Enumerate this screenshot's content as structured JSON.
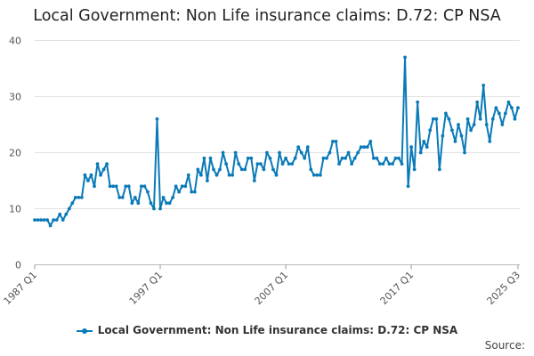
{
  "chart_data": {
    "type": "line",
    "title": "Local Government: Non Life insurance claims: D.72: CP NSA",
    "xlabel": "",
    "ylabel": "",
    "ylim": [
      0,
      40
    ],
    "yticks": [
      0,
      10,
      20,
      30,
      40
    ],
    "x_start": "1987 Q1",
    "x_end": "2025 Q3",
    "xtick_labels": [
      "1987 Q1",
      "1997 Q1",
      "2007 Q1",
      "2017 Q1",
      "2025 Q3"
    ],
    "grid": "horizontal",
    "legend_position": "bottom",
    "series": [
      {
        "name": "Local Government: Non Life insurance claims: D.72: CP NSA",
        "color": "#0a7ab8",
        "values": [
          8,
          8,
          8,
          8,
          8,
          7,
          8,
          8,
          9,
          8,
          9,
          10,
          11,
          12,
          12,
          12,
          16,
          15,
          16,
          14,
          18,
          16,
          17,
          18,
          14,
          14,
          14,
          12,
          12,
          14,
          14,
          11,
          12,
          11,
          14,
          14,
          13,
          11,
          10,
          26,
          10,
          12,
          11,
          11,
          12,
          14,
          13,
          14,
          14,
          16,
          13,
          13,
          17,
          16,
          19,
          15,
          19,
          17,
          16,
          17,
          20,
          18,
          16,
          16,
          20,
          18,
          17,
          17,
          19,
          19,
          15,
          18,
          18,
          17,
          20,
          19,
          17,
          16,
          20,
          18,
          19,
          18,
          18,
          19,
          21,
          20,
          19,
          21,
          17,
          16,
          16,
          16,
          19,
          19,
          20,
          22,
          22,
          18,
          19,
          19,
          20,
          18,
          19,
          20,
          21,
          21,
          21,
          22,
          19,
          19,
          18,
          18,
          19,
          18,
          18,
          19,
          19,
          18,
          37,
          14,
          21,
          17,
          29,
          20,
          22,
          21,
          24,
          26,
          26,
          17,
          23,
          27,
          26,
          24,
          22,
          25,
          23,
          20,
          26,
          24,
          25,
          29,
          26,
          32,
          25,
          22,
          26,
          28,
          27,
          25,
          27,
          29,
          28,
          26,
          28
        ]
      }
    ]
  },
  "legend": {
    "label": "Local Government: Non Life insurance claims: D.72: CP NSA"
  },
  "source_label": "Source:"
}
